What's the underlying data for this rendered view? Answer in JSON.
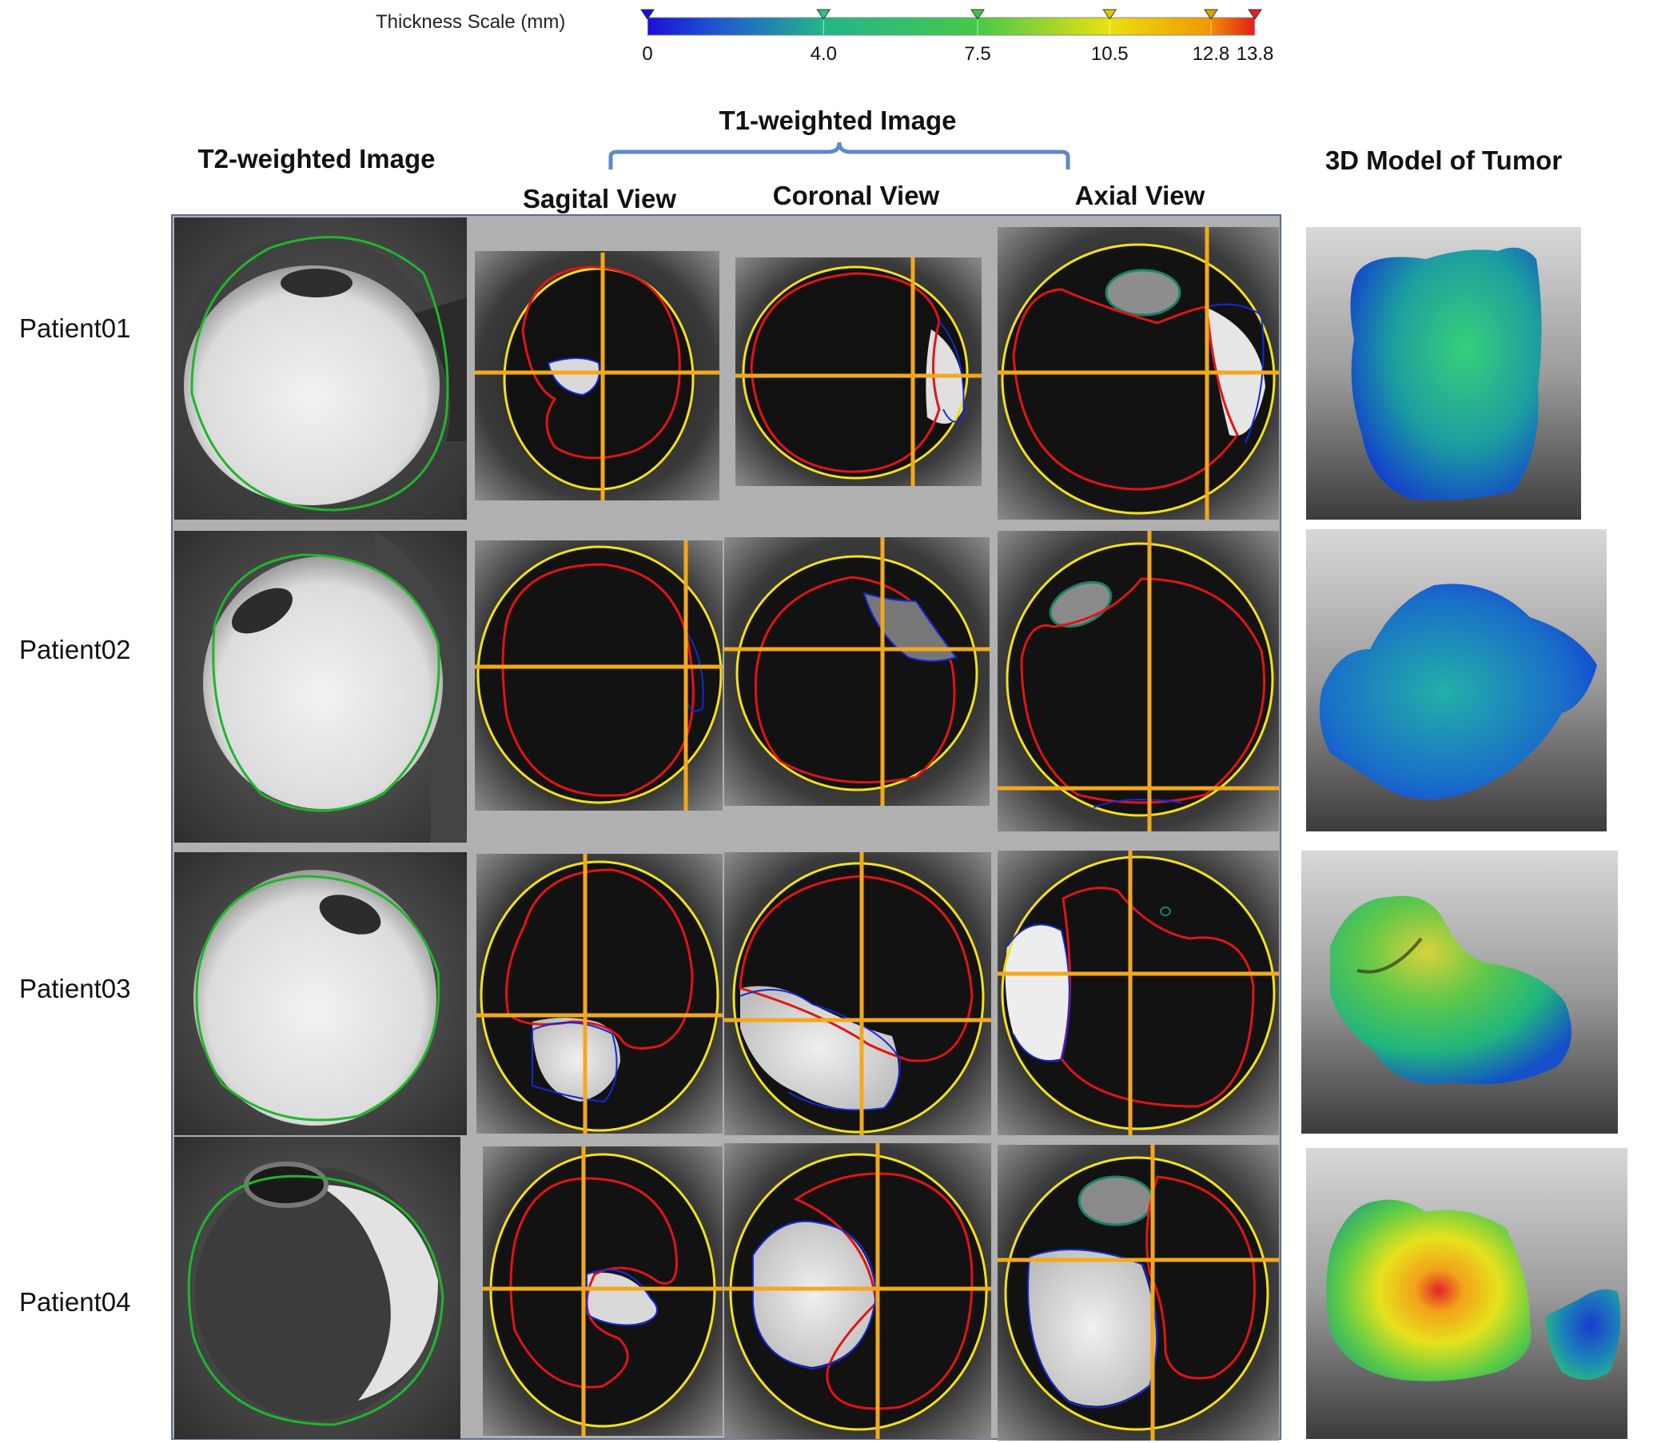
{
  "colorbar": {
    "title": "Thickness Scale (mm)",
    "ticks": [
      {
        "label": "0",
        "value": 0,
        "color": "#1a0fd6"
      },
      {
        "label": "4.0",
        "value": 4.0,
        "color": "#2ec27a"
      },
      {
        "label": "7.5",
        "value": 7.5,
        "color": "#41c04a"
      },
      {
        "label": "10.5",
        "value": 10.5,
        "color": "#e3c70a"
      },
      {
        "label": "12.8",
        "value": 12.8,
        "color": "#e0a000"
      },
      {
        "label": "13.8",
        "value": 13.8,
        "color": "#e02020"
      }
    ],
    "min": 0,
    "max": 13.8
  },
  "headers": {
    "t2": "T2-weighted Image",
    "t1": "T1-weighted Image",
    "sagital": "Sagital View",
    "coronal": "Coronal View",
    "axial": "Axial View",
    "model": "3D Model of Tumor"
  },
  "patients": [
    {
      "label": "Patient01"
    },
    {
      "label": "Patient02"
    },
    {
      "label": "Patient03"
    },
    {
      "label": "Patient04"
    }
  ],
  "colors": {
    "globe_contour": "#1fb62b",
    "eye_contour": "#f2e21a",
    "inner_contour": "#e01515",
    "tumor_contour": "#1428d8",
    "lens_contour": "#17836a",
    "crosshair": "#f2a91d",
    "bracket": "#5b8bc9",
    "frame": "#5b6d8f"
  }
}
